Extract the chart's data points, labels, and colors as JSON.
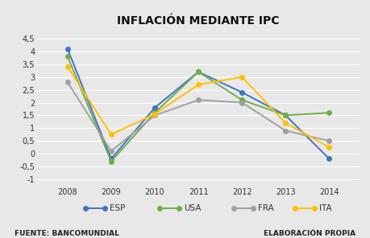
{
  "title": "INFLACIÓN MEDIANTE IPC",
  "years": [
    2008,
    2009,
    2010,
    2011,
    2012,
    2013,
    2014
  ],
  "series": {
    "ESP": [
      4.1,
      -0.2,
      1.8,
      3.2,
      2.4,
      1.5,
      -0.2
    ],
    "USA": [
      3.8,
      -0.3,
      1.6,
      3.2,
      2.1,
      1.5,
      1.6
    ],
    "FRA": [
      2.8,
      0.1,
      1.5,
      2.1,
      2.0,
      0.9,
      0.5
    ],
    "ITA": [
      3.4,
      0.75,
      1.55,
      2.7,
      3.0,
      1.2,
      0.25
    ]
  },
  "colors": {
    "ESP": "#4472C4",
    "USA": "#70AD47",
    "FRA": "#A0A0A0",
    "ITA": "#FFC000"
  },
  "ylim_plot": [
    -1.25,
    4.8
  ],
  "ylim_visible": [
    -1.0,
    4.5
  ],
  "yticks": [
    -1.0,
    -0.5,
    0.0,
    0.5,
    1.0,
    1.5,
    2.0,
    2.5,
    3.0,
    3.5,
    4.0,
    4.5
  ],
  "ytick_labels": [
    "-1",
    "-0,5",
    "0",
    "0,5",
    "1",
    "1,5",
    "2",
    "2,5",
    "3",
    "3,5",
    "4",
    "4,5"
  ],
  "xlim": [
    2007.3,
    2014.7
  ],
  "footer_left": "FUENTE: BANCOMUNDIAL",
  "footer_right": "ELABORACIÓN PROPIA",
  "background_color": "#e8e8e8",
  "plot_bg_color": "#e8e8e8",
  "grid_color": "#ffffff",
  "title_fontsize": 10,
  "legend_fontsize": 7.5,
  "tick_fontsize": 7,
  "footer_fontsize": 6.5,
  "linewidth": 1.4,
  "markersize": 4
}
